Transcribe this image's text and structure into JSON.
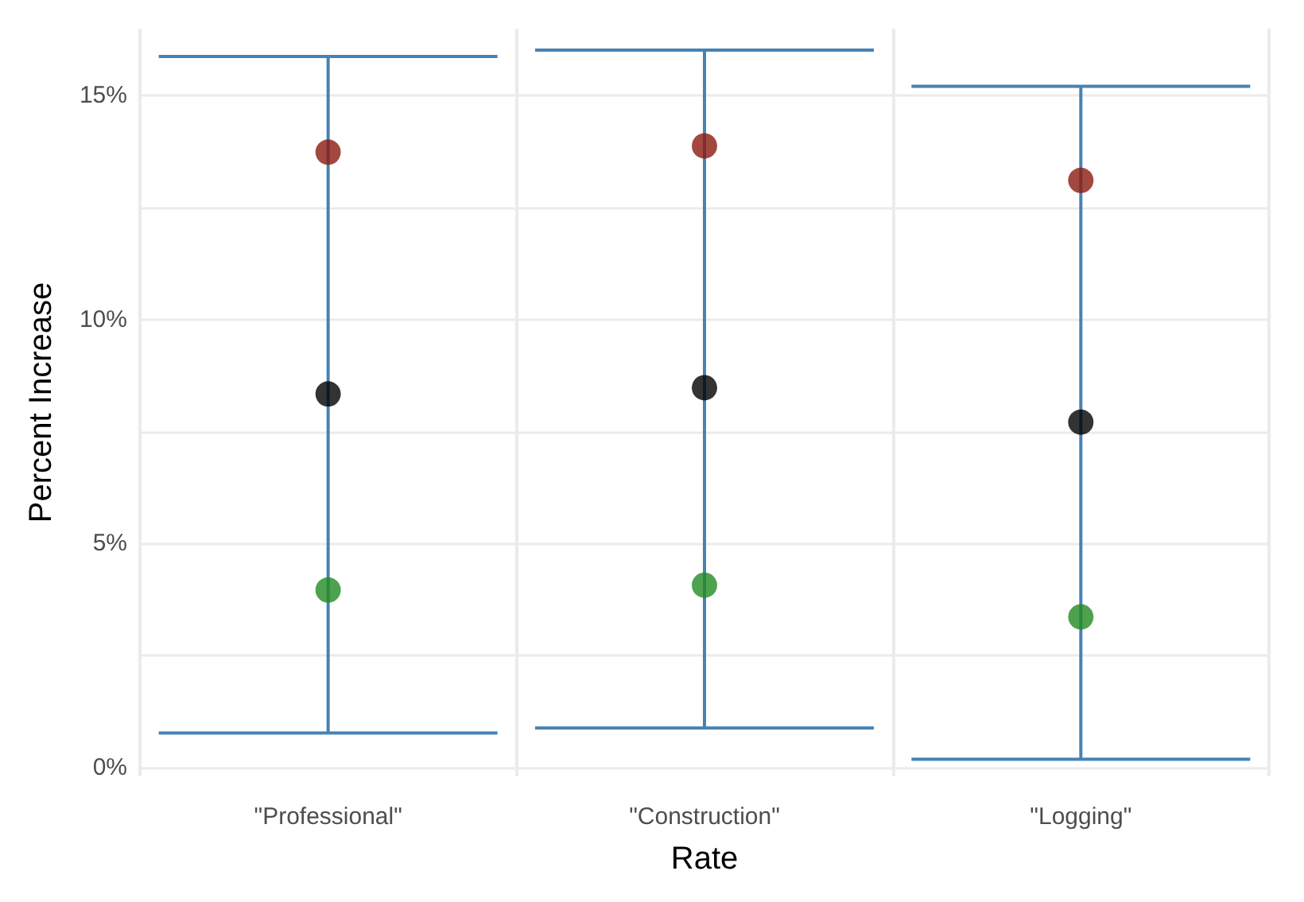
{
  "chart_data": {
    "type": "scatter",
    "xlabel": "Rate",
    "ylabel": "Percent Increase",
    "categories": [
      "\"Professional\"",
      "\"Construction\"",
      "\"Logging\""
    ],
    "series": [
      {
        "color": "#4682b4",
        "colors": [
          "#000000",
          "#000000",
          "#000000"
        ],
        "values": [
          8.34,
          8.48,
          7.71
        ],
        "errors": [
          [
            0.77,
            15.88
          ],
          [
            0.88,
            16.02
          ],
          [
            0.18,
            15.21
          ]
        ]
      },
      {
        "color": "#8b1a0e",
        "values": [
          13.74,
          13.88,
          13.11
        ]
      },
      {
        "color": "#228b22",
        "values": [
          3.96,
          4.07,
          3.36
        ]
      }
    ],
    "ylim": [
      -0.2,
      16.5
    ],
    "yticks": [
      {
        "value": 0,
        "label": "0%"
      },
      {
        "value": 2.5,
        "label": null
      },
      {
        "value": 5,
        "label": "5%"
      },
      {
        "value": 7.5,
        "label": null
      },
      {
        "value": 10,
        "label": "10%"
      },
      {
        "value": 12.5,
        "label": null
      },
      {
        "value": 15,
        "label": "15%"
      }
    ],
    "grid": true,
    "marker": "circle"
  }
}
